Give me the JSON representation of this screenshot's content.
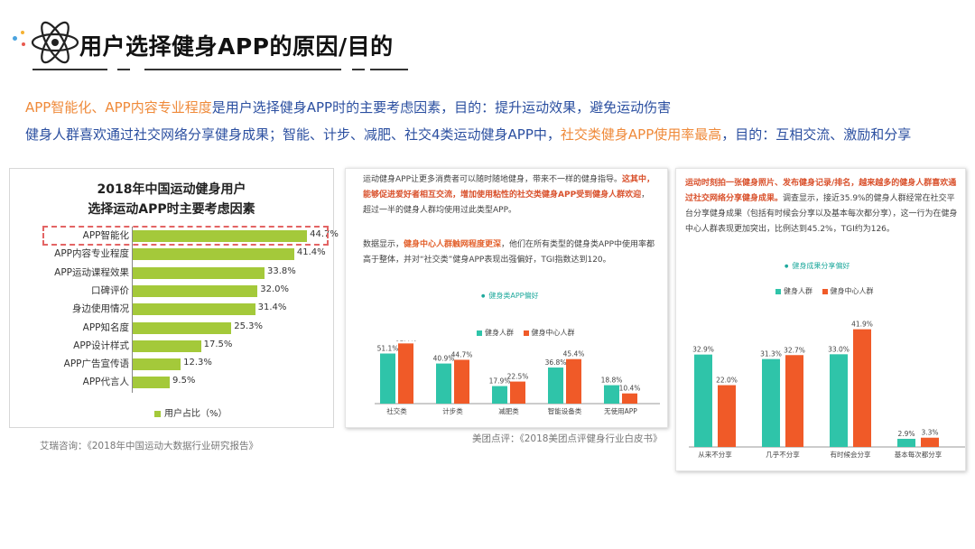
{
  "header": {
    "title": "用户选择健身APP的原因/目的"
  },
  "summary": {
    "line1": {
      "orange": "APP智能化、APP内容专业程度",
      "rest": "是用户选择健身APP时的主要考虑因素，目的：提升运动效果，避免运动伤害"
    },
    "line2": {
      "part1": "健身人群喜欢通过社交网络分享健身成果；智能、计步、减肥、社交4类运动健身APP中，",
      "orange": "社交类健身APP使用率最高",
      "part2": "，目的：互相交流、激励和分享"
    }
  },
  "colors": {
    "green_bar": "#a4c93a",
    "teal": "#2fc4a9",
    "orange": "#f05a28",
    "blue_text": "#2b4fa0",
    "orange_text": "#ef8a3a"
  },
  "chart_data": [
    {
      "type": "bar",
      "orientation": "horizontal",
      "title": "2018年中国运动健身用户",
      "subtitle": "选择运动APP时主要考虑因素",
      "categories": [
        "APP智能化",
        "APP内容专业程度",
        "APP运动课程效果",
        "口碑评价",
        "身边使用情况",
        "APP知名度",
        "APP设计样式",
        "APP广告宣传语",
        "APP代言人"
      ],
      "series": [
        {
          "name": "用户占比（%）",
          "values": [
            44.7,
            41.4,
            33.8,
            32.0,
            31.4,
            25.3,
            17.5,
            12.3,
            9.5
          ]
        }
      ],
      "value_labels": [
        "44.7%",
        "41.4%",
        "33.8%",
        "32.0%",
        "31.4%",
        "25.3%",
        "17.5%",
        "12.3%",
        "9.5%"
      ],
      "xlim": [
        0,
        50
      ]
    },
    {
      "type": "bar",
      "title": "健身类APP偏好",
      "categories": [
        "社交类",
        "计步类",
        "减肥类",
        "智能设备类",
        "无使用APP"
      ],
      "series": [
        {
          "name": "健身人群",
          "values": [
            51.1,
            40.9,
            17.9,
            36.8,
            18.8
          ],
          "labels": [
            "51.1%",
            "40.9%",
            "17.9%",
            "36.8%",
            "18.8%"
          ]
        },
        {
          "name": "健身中心人群",
          "values": [
            61.4,
            44.7,
            22.5,
            45.4,
            10.4
          ],
          "labels": [
            "61.4%",
            "44.7%",
            "22.5%",
            "45.4%",
            "10.4%"
          ]
        }
      ],
      "ylim": [
        0,
        70
      ]
    },
    {
      "type": "bar",
      "title": "健身成果分享偏好",
      "categories": [
        "从来不分享",
        "几乎不分享",
        "有时候会分享",
        "基本每次都分享"
      ],
      "series": [
        {
          "name": "健身人群",
          "values": [
            32.9,
            31.3,
            33.0,
            2.9
          ],
          "labels": [
            "32.9%",
            "31.3%",
            "33.0%",
            "2.9%"
          ]
        },
        {
          "name": "健身中心人群",
          "values": [
            22.0,
            32.7,
            41.9,
            3.3
          ],
          "labels": [
            "22.0%",
            "32.7%",
            "41.9%",
            "3.3%"
          ]
        }
      ],
      "ylim": [
        0,
        45
      ]
    }
  ],
  "panel2": {
    "p1_a": "运动健身APP让更多消费者可以随时随地健身，带来不一样的健身指导。",
    "p1_red": "这其中，能够促进爱好者相互交流，增加使用粘性的社交类健身APP受到健身人群欢迎",
    "p1_b": "，超过一半的健身人群均使用过此类型APP。",
    "p2_a": "数据显示，",
    "p2_red": "健身中心人群触网程度更深",
    "p2_b": "，他们在所有类型的健身类APP中使用率都高于整体，并对“社交类”健身APP表现出强偏好，TGI指数达到120。"
  },
  "panel3": {
    "red": "运动时刻拍一张健身照片、发布健身记录/排名，越来越多的健身人群喜欢通过社交网络分享健身成果。",
    "rest": "调查显示，接近35.9%的健身人群经常在社交平台分享健身成果（包括有时候会分享以及基本每次都分享），这一行为在健身中心人群表现更加突出，比例达到45.2%，TGI约为126。"
  },
  "sources": {
    "s1": "艾瑞咨询：《2018年中国运动大数据行业研究报告》",
    "s2": "美团点评：《2018美团点评健身行业白皮书》"
  }
}
